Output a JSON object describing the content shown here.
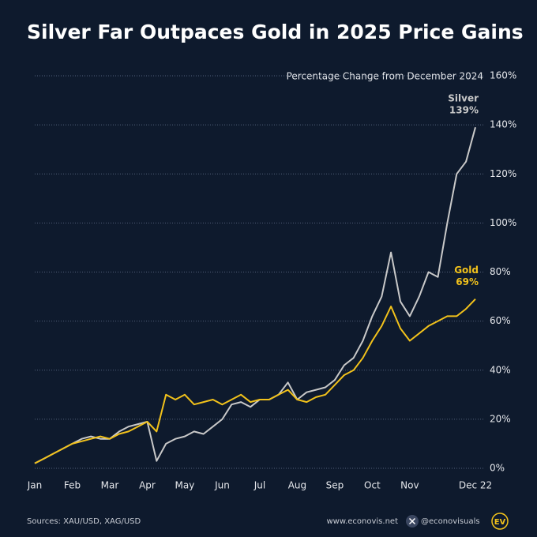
{
  "chart_data": {
    "type": "line",
    "title": "Silver Far Outpaces Gold in 2025 Price Gains",
    "y_axis_title": "Percentage Change from December 2024",
    "categories": [
      "Jan",
      null,
      null,
      null,
      "Feb",
      null,
      null,
      null,
      "Mar",
      null,
      null,
      null,
      "Apr",
      null,
      null,
      null,
      "May",
      null,
      null,
      null,
      "Jun",
      null,
      null,
      null,
      "Jul",
      null,
      null,
      null,
      "Aug",
      null,
      null,
      null,
      "Sep",
      null,
      null,
      null,
      "Oct",
      null,
      null,
      null,
      "Nov",
      null,
      null,
      null,
      null,
      null,
      null,
      "Dec 22"
    ],
    "series": [
      {
        "name": "Silver",
        "color": "#c9c9c9",
        "values": [
          2,
          4,
          6,
          8,
          10,
          12,
          13,
          12,
          12,
          15,
          17,
          18,
          19,
          3,
          10,
          12,
          13,
          15,
          14,
          17,
          20,
          26,
          27,
          25,
          28,
          28,
          30,
          35,
          28,
          31,
          32,
          33,
          36,
          42,
          45,
          52,
          62,
          70,
          88,
          68,
          62,
          70,
          80,
          78,
          100,
          120,
          125,
          139
        ],
        "value_labels": [
          null,
          null,
          null,
          null,
          null,
          null,
          null,
          null,
          null,
          null,
          null,
          null,
          null,
          null,
          null,
          null,
          null,
          null,
          null,
          null,
          null,
          null,
          null,
          null,
          null,
          null,
          null,
          null,
          null,
          null,
          null,
          null,
          null,
          null,
          null,
          null,
          null,
          null,
          null,
          null,
          null,
          null,
          null,
          null,
          null,
          null,
          null,
          "139%"
        ]
      },
      {
        "name": "Gold",
        "color": "#f2c21b",
        "values": [
          2,
          4,
          6,
          8,
          10,
          11,
          12,
          13,
          12,
          14,
          15,
          17,
          19,
          15,
          30,
          28,
          30,
          26,
          27,
          28,
          26,
          28,
          30,
          27,
          28,
          28,
          30,
          32,
          28,
          27,
          29,
          30,
          34,
          38,
          40,
          45,
          52,
          58,
          66,
          57,
          52,
          55,
          58,
          60,
          62,
          62,
          65,
          69
        ],
        "value_labels": [
          null,
          null,
          null,
          null,
          null,
          null,
          null,
          null,
          null,
          null,
          null,
          null,
          null,
          null,
          null,
          null,
          null,
          null,
          null,
          null,
          null,
          null,
          null,
          null,
          null,
          null,
          null,
          null,
          null,
          null,
          null,
          null,
          null,
          null,
          null,
          null,
          null,
          null,
          null,
          null,
          null,
          null,
          null,
          null,
          null,
          null,
          null,
          "69%"
        ]
      }
    ],
    "ylim": [
      0,
      160
    ],
    "yticks": [
      {
        "value": 0,
        "label": "0%"
      },
      {
        "value": 20,
        "label": "20%"
      },
      {
        "value": 40,
        "label": "40%"
      },
      {
        "value": 60,
        "label": "60%"
      },
      {
        "value": 80,
        "label": "80%"
      },
      {
        "value": 100,
        "label": "100%"
      },
      {
        "value": 120,
        "label": "120%"
      },
      {
        "value": 140,
        "label": "140%"
      },
      {
        "value": 160,
        "label": "160%"
      }
    ],
    "grid": true
  },
  "footer": {
    "source": "Sources: XAU/USD, XAG/USD",
    "website": "www.econovis.net",
    "handle": "@econovisuals",
    "logo": "EV"
  }
}
